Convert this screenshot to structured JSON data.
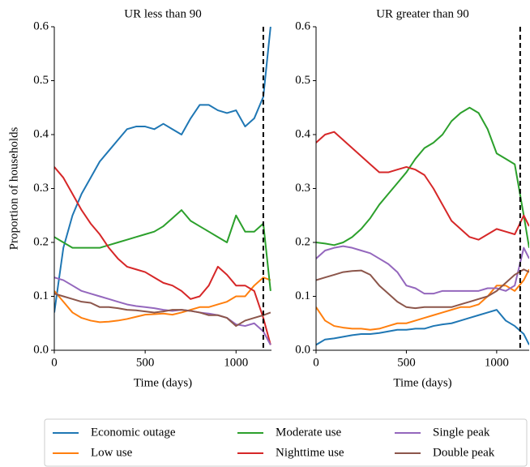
{
  "chart_data": [
    {
      "type": "line",
      "title": "UR less than 90",
      "xlabel": "Time (days)",
      "ylabel": "Proportion of households",
      "xlim": [
        0,
        1195
      ],
      "ylim": [
        0,
        0.6
      ],
      "xticks": [
        0,
        500,
        1000
      ],
      "yticks": [
        {
          "value": 0,
          "label": "0.0"
        },
        0.1,
        0.2,
        0.3,
        0.4,
        0.5,
        0.6
      ],
      "vline": 1150,
      "x": [
        0,
        50,
        100,
        150,
        200,
        250,
        300,
        350,
        400,
        450,
        500,
        550,
        600,
        650,
        700,
        750,
        800,
        850,
        900,
        950,
        1000,
        1050,
        1100,
        1150,
        1190
      ],
      "series": [
        {
          "name": "Economic outage",
          "color": "#1f77b4",
          "values": [
            0.07,
            0.19,
            0.25,
            0.29,
            0.32,
            0.35,
            0.37,
            0.39,
            0.41,
            0.415,
            0.415,
            0.41,
            0.42,
            0.41,
            0.4,
            0.43,
            0.455,
            0.455,
            0.445,
            0.44,
            0.445,
            0.415,
            0.43,
            0.47,
            0.6
          ]
        },
        {
          "name": "Low use",
          "color": "#ff7f0e",
          "values": [
            0.11,
            0.09,
            0.07,
            0.06,
            0.055,
            0.052,
            0.053,
            0.055,
            0.058,
            0.062,
            0.066,
            0.067,
            0.068,
            0.066,
            0.07,
            0.075,
            0.08,
            0.08,
            0.085,
            0.09,
            0.1,
            0.1,
            0.12,
            0.135,
            0.13
          ]
        },
        {
          "name": "Moderate use",
          "color": "#2ca02c",
          "values": [
            0.21,
            0.2,
            0.19,
            0.19,
            0.19,
            0.19,
            0.195,
            0.2,
            0.205,
            0.21,
            0.215,
            0.22,
            0.23,
            0.245,
            0.26,
            0.24,
            0.23,
            0.22,
            0.21,
            0.2,
            0.25,
            0.22,
            0.22,
            0.235,
            0.11
          ]
        },
        {
          "name": "Nighttime use",
          "color": "#d62728",
          "values": [
            0.34,
            0.32,
            0.29,
            0.26,
            0.235,
            0.215,
            0.19,
            0.17,
            0.155,
            0.15,
            0.145,
            0.135,
            0.125,
            0.12,
            0.11,
            0.095,
            0.1,
            0.12,
            0.155,
            0.14,
            0.12,
            0.12,
            0.11,
            0.06,
            0.01
          ]
        },
        {
          "name": "Single peak",
          "color": "#9467bd",
          "values": [
            0.135,
            0.13,
            0.12,
            0.11,
            0.105,
            0.1,
            0.095,
            0.09,
            0.085,
            0.082,
            0.08,
            0.078,
            0.075,
            0.073,
            0.075,
            0.073,
            0.07,
            0.068,
            0.065,
            0.06,
            0.048,
            0.045,
            0.05,
            0.035,
            0.01
          ]
        },
        {
          "name": "Double peak",
          "color": "#8c564b",
          "values": [
            0.105,
            0.1,
            0.095,
            0.09,
            0.088,
            0.08,
            0.08,
            0.078,
            0.075,
            0.074,
            0.072,
            0.07,
            0.072,
            0.075,
            0.075,
            0.073,
            0.07,
            0.065,
            0.065,
            0.06,
            0.045,
            0.055,
            0.06,
            0.065,
            0.07
          ]
        }
      ]
    },
    {
      "type": "line",
      "title": "UR greater than 90",
      "xlabel": "Time (days)",
      "xlim": [
        0,
        1180
      ],
      "ylim": [
        0,
        0.6
      ],
      "xticks": [
        0,
        500,
        1000
      ],
      "yticks": [
        {
          "value": 0,
          "label": "0.0"
        },
        0.1,
        0.2,
        0.3,
        0.4,
        0.5,
        0.6
      ],
      "vline": 1130,
      "x": [
        0,
        50,
        100,
        150,
        200,
        250,
        300,
        350,
        400,
        450,
        500,
        550,
        600,
        650,
        700,
        750,
        800,
        850,
        900,
        950,
        1000,
        1050,
        1100,
        1150,
        1180
      ],
      "series": [
        {
          "name": "Economic outage",
          "color": "#1f77b4",
          "values": [
            0.01,
            0.02,
            0.022,
            0.025,
            0.028,
            0.03,
            0.03,
            0.032,
            0.035,
            0.038,
            0.038,
            0.04,
            0.04,
            0.045,
            0.048,
            0.05,
            0.055,
            0.06,
            0.065,
            0.07,
            0.075,
            0.055,
            0.045,
            0.03,
            0.01
          ]
        },
        {
          "name": "Low use",
          "color": "#ff7f0e",
          "values": [
            0.08,
            0.055,
            0.045,
            0.042,
            0.04,
            0.04,
            0.038,
            0.04,
            0.045,
            0.05,
            0.05,
            0.055,
            0.06,
            0.065,
            0.07,
            0.075,
            0.08,
            0.08,
            0.085,
            0.1,
            0.12,
            0.12,
            0.11,
            0.13,
            0.15
          ]
        },
        {
          "name": "Moderate use",
          "color": "#2ca02c",
          "values": [
            0.2,
            0.198,
            0.195,
            0.2,
            0.21,
            0.225,
            0.245,
            0.27,
            0.29,
            0.31,
            0.33,
            0.355,
            0.375,
            0.385,
            0.4,
            0.425,
            0.44,
            0.45,
            0.44,
            0.41,
            0.365,
            0.355,
            0.345,
            0.25,
            0.19
          ]
        },
        {
          "name": "Nighttime use",
          "color": "#d62728",
          "values": [
            0.385,
            0.4,
            0.405,
            0.39,
            0.375,
            0.36,
            0.345,
            0.33,
            0.33,
            0.335,
            0.34,
            0.335,
            0.325,
            0.3,
            0.27,
            0.24,
            0.225,
            0.21,
            0.205,
            0.215,
            0.225,
            0.22,
            0.215,
            0.25,
            0.23
          ]
        },
        {
          "name": "Single peak",
          "color": "#9467bd",
          "values": [
            0.17,
            0.185,
            0.19,
            0.193,
            0.19,
            0.185,
            0.18,
            0.17,
            0.16,
            0.145,
            0.12,
            0.115,
            0.105,
            0.105,
            0.11,
            0.11,
            0.11,
            0.11,
            0.11,
            0.115,
            0.115,
            0.11,
            0.12,
            0.19,
            0.17
          ]
        },
        {
          "name": "Double peak",
          "color": "#8c564b",
          "values": [
            0.13,
            0.135,
            0.14,
            0.145,
            0.147,
            0.148,
            0.14,
            0.12,
            0.105,
            0.09,
            0.08,
            0.078,
            0.08,
            0.08,
            0.08,
            0.08,
            0.085,
            0.09,
            0.095,
            0.1,
            0.11,
            0.125,
            0.14,
            0.15,
            0.145
          ]
        }
      ]
    }
  ]
}
